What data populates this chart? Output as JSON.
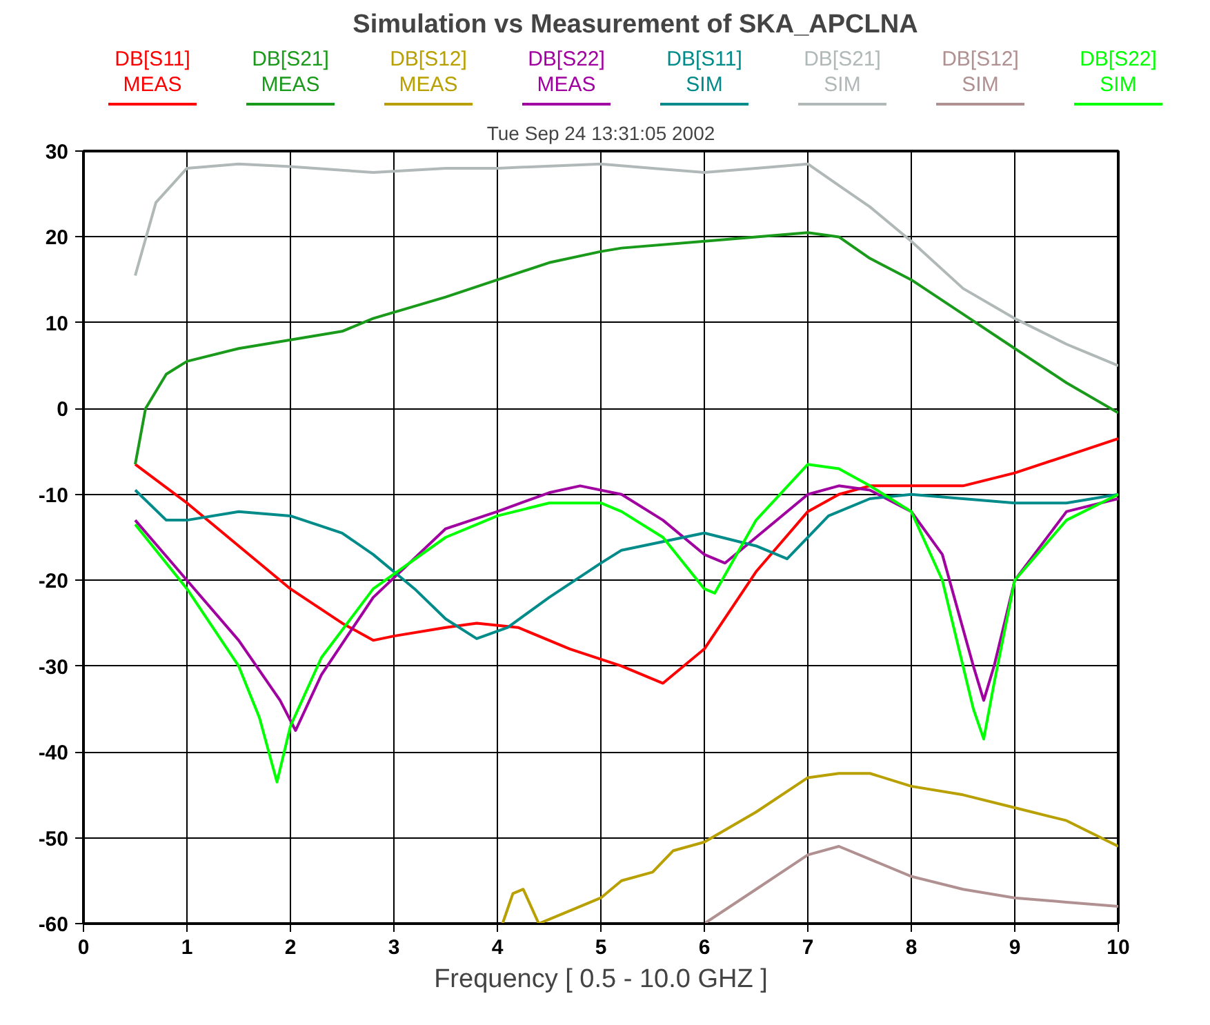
{
  "chart_data": {
    "type": "line",
    "title": "Simulation vs Measurement of SKA_APCLNA",
    "annotations": [
      "Tue Sep 24 13:31:05 2002"
    ],
    "xlabel": "Frequency [ 0.5 - 10.0 GHZ ]",
    "xlim": [
      0,
      10
    ],
    "ylim": [
      -60,
      30
    ],
    "xticks": [
      0,
      1,
      2,
      3,
      4,
      5,
      6,
      7,
      8,
      9,
      10
    ],
    "yticks": [
      -60,
      -50,
      -40,
      -30,
      -20,
      -10,
      0,
      10,
      20,
      30
    ],
    "grid": true,
    "legend": "top",
    "line_style": "solid",
    "series": [
      {
        "name": "DB[S11]\nMEAS",
        "color": "#ff0000",
        "x": [
          0.5,
          1,
          1.5,
          2,
          2.5,
          2.8,
          3,
          3.5,
          3.8,
          4.2,
          4.7,
          5.2,
          5.6,
          6,
          6.5,
          7,
          7.3,
          7.6,
          8,
          8.5,
          9,
          9.5,
          10
        ],
        "values": [
          -6.5,
          -11,
          -16,
          -21,
          -25,
          -27,
          -26.5,
          -25.5,
          -25,
          -25.5,
          -28,
          -30,
          -32,
          -28,
          -19,
          -12,
          -10,
          -9,
          -9,
          -9,
          -7.5,
          -5.5,
          -3.5
        ]
      },
      {
        "name": "DB[S21]\nMEAS",
        "color": "#1a9a1a",
        "x": [
          0.5,
          0.6,
          0.8,
          1,
          1.5,
          2,
          2.5,
          2.8,
          3.5,
          4,
          4.5,
          5,
          5.2,
          6,
          6.5,
          7,
          7.3,
          7.6,
          8,
          8.5,
          9,
          9.5,
          10
        ],
        "values": [
          -6.5,
          0,
          4,
          5.5,
          7,
          8,
          9,
          10.5,
          13,
          15,
          17,
          18.3,
          18.7,
          19.5,
          20,
          20.5,
          20,
          17.5,
          15,
          11,
          7,
          3,
          -0.5
        ]
      },
      {
        "name": "DB[S12]\nMEAS",
        "color": "#b8a000",
        "x": [
          4.05,
          4.15,
          4.25,
          4.4,
          4.6,
          5,
          5.2,
          5.5,
          5.7,
          6,
          6.5,
          7,
          7.3,
          7.6,
          8,
          8.5,
          9,
          9.5,
          10
        ],
        "values": [
          -60,
          -56.5,
          -56,
          -60,
          -59,
          -57,
          -55,
          -54,
          -51.5,
          -50.5,
          -47,
          -43,
          -42.5,
          -42.5,
          -44,
          -45,
          -46.5,
          -48,
          -51
        ]
      },
      {
        "name": "DB[S22]\nMEAS",
        "color": "#a000a0",
        "x": [
          0.5,
          1,
          1.5,
          1.9,
          2.05,
          2.3,
          2.8,
          3.5,
          4,
          4.5,
          4.8,
          5.2,
          5.6,
          6,
          6.2,
          6.5,
          7,
          7.3,
          7.6,
          8,
          8.3,
          8.6,
          8.7,
          8.8,
          9,
          9.5,
          10
        ],
        "values": [
          -13,
          -20,
          -27,
          -34,
          -37.5,
          -31,
          -22,
          -14,
          -12,
          -9.8,
          -9,
          -10,
          -13,
          -17,
          -18,
          -15,
          -10,
          -9,
          -9.5,
          -12,
          -17,
          -30,
          -34,
          -30,
          -20,
          -12,
          -10.5
        ]
      },
      {
        "name": "DB[S11]\nSIM",
        "color": "#008b8b",
        "x": [
          0.5,
          0.8,
          1,
          1.5,
          2,
          2.5,
          2.8,
          3.2,
          3.5,
          3.8,
          4.1,
          4.5,
          5,
          5.2,
          6,
          6.5,
          6.8,
          7.2,
          7.6,
          8,
          8.5,
          9,
          9.5,
          10
        ],
        "values": [
          -9.5,
          -13,
          -13,
          -12,
          -12.5,
          -14.5,
          -17,
          -21,
          -24.5,
          -26.8,
          -25.5,
          -22,
          -18,
          -16.5,
          -14.5,
          -16,
          -17.5,
          -12.5,
          -10.5,
          -10,
          -10.5,
          -11,
          -11,
          -10
        ]
      },
      {
        "name": "DB[S21]\nSIM",
        "color": "#b0b8b8",
        "x": [
          0.5,
          0.7,
          1,
          1.5,
          2,
          2.8,
          3.5,
          4,
          5,
          5.5,
          6,
          6.5,
          7,
          7.3,
          7.6,
          8,
          8.5,
          9,
          9.5,
          10
        ],
        "values": [
          15.5,
          24,
          28,
          28.5,
          28.2,
          27.5,
          28,
          28,
          28.5,
          28,
          27.5,
          28,
          28.5,
          26,
          23.5,
          19.5,
          14,
          10.5,
          7.5,
          5
        ]
      },
      {
        "name": "DB[S12]\nSIM",
        "color": "#b09090",
        "x": [
          6,
          6.5,
          7,
          7.3,
          7.6,
          8,
          8.5,
          9,
          9.5,
          10
        ],
        "values": [
          -60,
          -56,
          -52,
          -51,
          -52.5,
          -54.5,
          -56,
          -57,
          -57.5,
          -58
        ]
      },
      {
        "name": "DB[S22]\nSIM",
        "color": "#00ff00",
        "x": [
          0.5,
          1,
          1.5,
          1.7,
          1.87,
          2,
          2.3,
          2.8,
          3.5,
          4,
          4.5,
          5,
          5.2,
          5.6,
          6,
          6.1,
          6.5,
          7,
          7.3,
          7.6,
          8,
          8.3,
          8.6,
          8.7,
          8.8,
          9,
          9.5,
          10
        ],
        "values": [
          -13.5,
          -21,
          -30,
          -36,
          -43.5,
          -37,
          -29,
          -21,
          -15,
          -12.5,
          -11,
          -11,
          -12,
          -15,
          -21,
          -21.5,
          -13,
          -6.5,
          -7,
          -9,
          -12,
          -20,
          -35,
          -38.5,
          -32,
          -20,
          -13,
          -10
        ]
      }
    ]
  }
}
